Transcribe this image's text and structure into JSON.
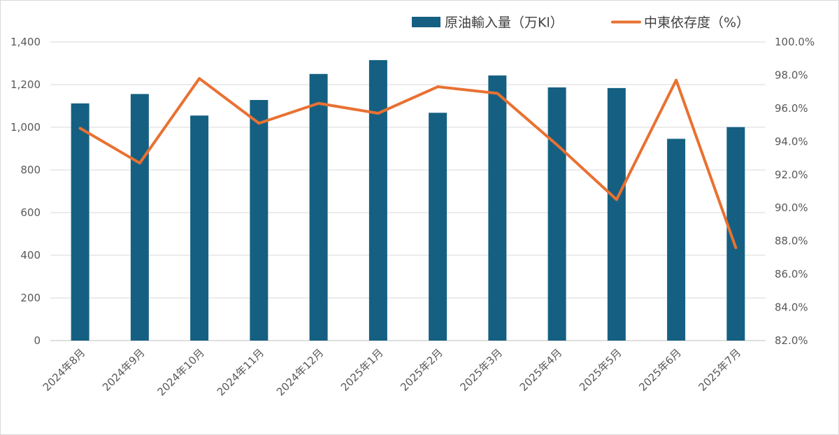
{
  "chart_data": {
    "type": "bar",
    "categories": [
      "2024年8月",
      "2024年9月",
      "2024年10月",
      "2024年11月",
      "2024年12月",
      "2025年1月",
      "2025年2月",
      "2025年3月",
      "2025年4月",
      "2025年5月",
      "2025年6月",
      "2025年7月"
    ],
    "series": [
      {
        "name": "原油輸入量（万Kl）",
        "type": "bar",
        "axis": "left",
        "color": "#156082",
        "values": [
          1112,
          1156,
          1055,
          1128,
          1250,
          1315,
          1068,
          1243,
          1187,
          1184,
          946,
          1001
        ]
      },
      {
        "name": "中東依存度（%）",
        "type": "line",
        "axis": "right",
        "color": "#E97132",
        "values": [
          94.8,
          92.7,
          97.8,
          95.1,
          96.3,
          95.7,
          97.3,
          96.9,
          93.8,
          90.5,
          97.7,
          87.6
        ]
      }
    ],
    "y_left": {
      "ylim": [
        0,
        1400
      ],
      "ticks": [
        0,
        200,
        400,
        600,
        800,
        1000,
        1200,
        1400
      ],
      "tick_labels": [
        "0",
        "200",
        "400",
        "600",
        "800",
        "1,000",
        "1,200",
        "1,400"
      ]
    },
    "y_right": {
      "ylim": [
        82,
        100
      ],
      "ticks": [
        82,
        84,
        86,
        88,
        90,
        92,
        94,
        96,
        98,
        100
      ],
      "tick_labels": [
        "82.0%",
        "84.0%",
        "86.0%",
        "88.0%",
        "90.0%",
        "92.0%",
        "94.0%",
        "96.0%",
        "98.0%",
        "100.0%"
      ]
    },
    "grid": true,
    "legend_position": "top-right"
  }
}
